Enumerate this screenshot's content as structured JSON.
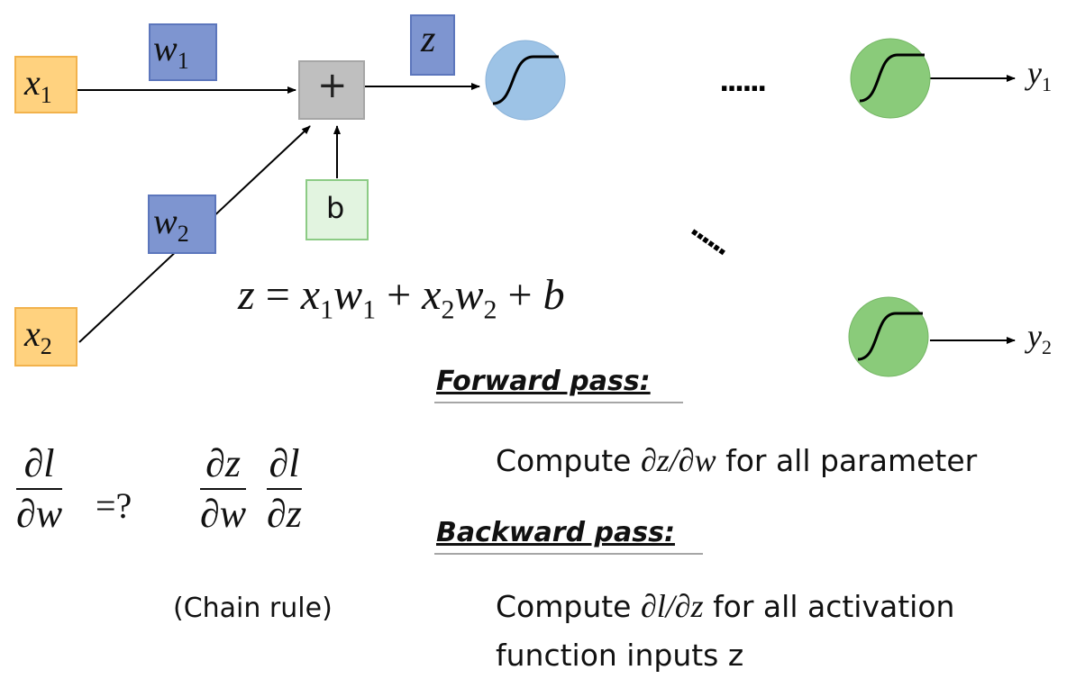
{
  "inputs": {
    "x1": {
      "base": "x",
      "sub": "1"
    },
    "x2": {
      "base": "x",
      "sub": "2"
    }
  },
  "weights": {
    "w1": {
      "base": "w",
      "sub": "1"
    },
    "w2": {
      "base": "w",
      "sub": "2"
    }
  },
  "sum_node": {
    "symbol": "+"
  },
  "bias": {
    "label": "b"
  },
  "z_label": "z",
  "outputs": {
    "y1": {
      "base": "y",
      "sub": "1"
    },
    "y2": {
      "base": "y",
      "sub": "2"
    }
  },
  "ellipsis": {
    "top": "......",
    "diagonal": "......"
  },
  "equation": {
    "z": "z",
    "eq": "=",
    "x1": "x",
    "x1_sub": "1",
    "w1": "w",
    "w1_sub": "1",
    "plus1": "+",
    "x2": "x",
    "x2_sub": "2",
    "w2": "w",
    "w2_sub": "2",
    "plus2": "+",
    "b": "b"
  },
  "derivative": {
    "lhs_num": "∂l",
    "lhs_den": "∂w",
    "eq_q": "=?",
    "chain1_num": "∂z",
    "chain1_den": "∂w",
    "chain2_num": "∂l",
    "chain2_den": "∂z",
    "chain_rule_label": "(Chain rule)"
  },
  "forward": {
    "heading": "Forward pass:",
    "text_before": "Compute ",
    "math": "∂z/∂w",
    "text_after": " for all parameter"
  },
  "backward": {
    "heading": "Backward pass:",
    "text_before": "Compute ",
    "math": "∂l/∂z",
    "text_after": " for all activation",
    "line2": "function inputs z"
  },
  "colors": {
    "input_fill": "#FFD27F",
    "input_stroke": "#F2B24C",
    "weight_fill": "#7E95D0",
    "weight_stroke": "#5C76BC",
    "sum_fill": "#BFBFBF",
    "sum_stroke": "#A6A6A6",
    "bias_fill": "#E2F4E0",
    "bias_stroke": "#8CCB85",
    "neuron_blue": "#9DC3E6",
    "neuron_green": "#8ACB7A"
  }
}
